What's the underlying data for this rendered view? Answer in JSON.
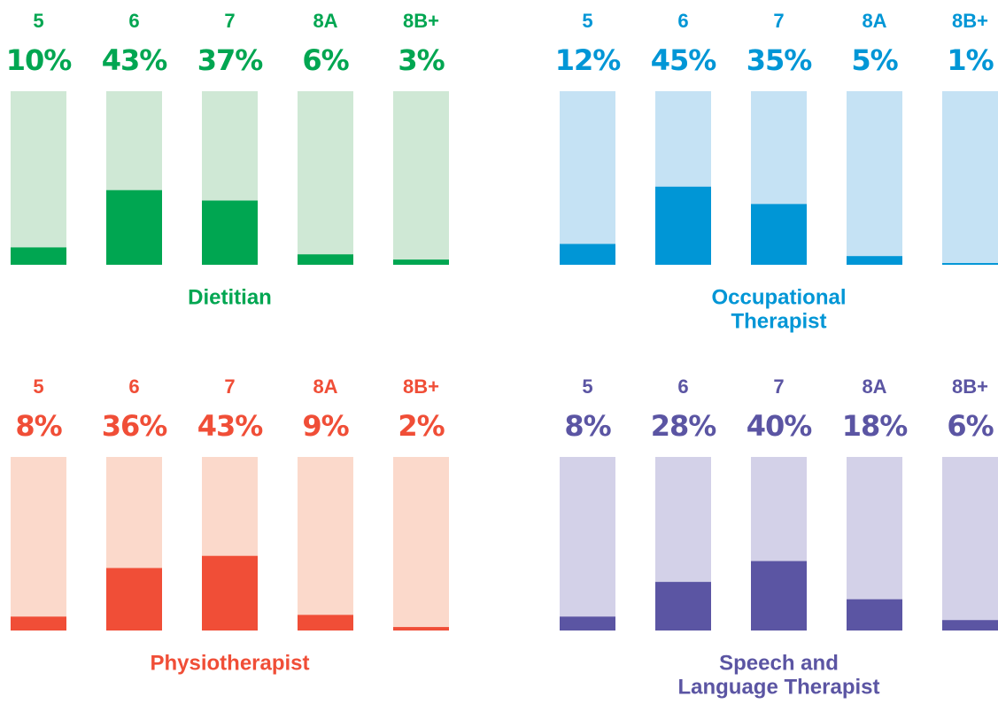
{
  "chart_data": [
    {
      "type": "bar",
      "title": [
        "Dietitian"
      ],
      "categories": [
        "5",
        "6",
        "7",
        "8A",
        "8B+"
      ],
      "values": [
        10,
        43,
        37,
        6,
        3
      ],
      "value_labels": [
        "10%",
        "43%",
        "37%",
        "6%",
        "3%"
      ],
      "color": "#00a651",
      "track_color": "#cfe8d5",
      "ylim": [
        0,
        100
      ]
    },
    {
      "type": "bar",
      "title": [
        "Occupational",
        "Therapist"
      ],
      "categories": [
        "5",
        "6",
        "7",
        "8A",
        "8B+"
      ],
      "values": [
        12,
        45,
        35,
        5,
        1
      ],
      "value_labels": [
        "12%",
        "45%",
        "35%",
        "5%",
        "1%"
      ],
      "color": "#0096d6",
      "track_color": "#c5e2f4",
      "ylim": [
        0,
        100
      ]
    },
    {
      "type": "bar",
      "title": [
        "Physiotherapist"
      ],
      "categories": [
        "5",
        "6",
        "7",
        "8A",
        "8B+"
      ],
      "values": [
        8,
        36,
        43,
        9,
        2
      ],
      "value_labels": [
        "8%",
        "36%",
        "43%",
        "9%",
        "2%"
      ],
      "color": "#f04e37",
      "track_color": "#fbd9cb",
      "ylim": [
        0,
        100
      ]
    },
    {
      "type": "bar",
      "title": [
        "Speech and",
        "Language Therapist"
      ],
      "categories": [
        "5",
        "6",
        "7",
        "8A",
        "8B+"
      ],
      "values": [
        8,
        28,
        40,
        18,
        6
      ],
      "value_labels": [
        "8%",
        "28%",
        "40%",
        "18%",
        "6%"
      ],
      "color": "#5b55a3",
      "track_color": "#d3d1e8",
      "ylim": [
        0,
        100
      ]
    }
  ]
}
